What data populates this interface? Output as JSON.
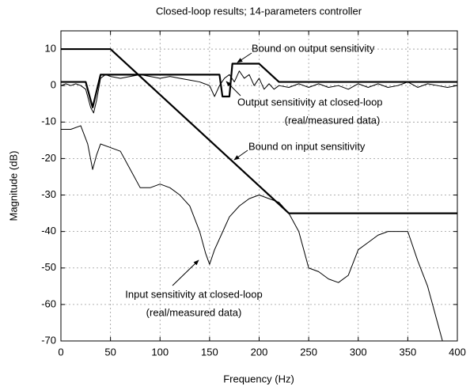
{
  "chart_data": {
    "type": "line",
    "title": "Closed-loop results; 14-parameters controller",
    "xlabel": "Frequency (Hz)",
    "ylabel": "Magnitude (dB)",
    "xlim": [
      0,
      400
    ],
    "ylim": [
      -70,
      15
    ],
    "xticks": [
      0,
      50,
      100,
      150,
      200,
      250,
      300,
      350,
      400
    ],
    "yticks": [
      10,
      0,
      -10,
      -20,
      -30,
      -40,
      -50,
      -60,
      -70
    ],
    "grid": true,
    "series": [
      {
        "color": "#000000",
        "width": 2.2,
        "x": [
          0,
          25,
          32,
          40,
          160,
          163,
          170,
          173,
          200,
          220,
          400
        ],
        "values": [
          1,
          1,
          -6,
          3,
          3,
          -3,
          -3,
          6,
          6,
          1,
          1
        ]
      },
      {
        "color": "#000000",
        "width": 2.2,
        "x": [
          0,
          50,
          230,
          400
        ],
        "values": [
          10,
          10,
          -35,
          -35
        ]
      },
      {
        "color": "#000000",
        "width": 1,
        "x": [
          0,
          5,
          10,
          15,
          20,
          25,
          30,
          33,
          36,
          40,
          45,
          50,
          60,
          70,
          80,
          90,
          100,
          110,
          120,
          130,
          140,
          150,
          155,
          160,
          165,
          170,
          175,
          180,
          185,
          190,
          195,
          200,
          205,
          210,
          215,
          220,
          230,
          240,
          250,
          260,
          270,
          280,
          290,
          300,
          310,
          320,
          330,
          340,
          350,
          360,
          370,
          380,
          390,
          400
        ],
        "values": [
          0,
          0.5,
          0,
          0.5,
          0,
          -1,
          -6,
          -7.5,
          -4,
          2,
          3,
          2.5,
          2,
          2.5,
          3,
          2.5,
          2,
          2.5,
          2,
          1.5,
          1,
          0,
          -3,
          0,
          2,
          3,
          1,
          4,
          2,
          3,
          0,
          2,
          -1,
          0.5,
          -1,
          0,
          -0.5,
          0.5,
          -0.5,
          0.5,
          -0.5,
          0,
          -1,
          0.5,
          -0.5,
          0.5,
          -0.5,
          0,
          1,
          -0.5,
          0.5,
          0,
          -0.5,
          0
        ]
      },
      {
        "color": "#000000",
        "width": 1,
        "x": [
          0,
          10,
          20,
          27,
          32,
          36,
          40,
          50,
          60,
          70,
          80,
          90,
          100,
          110,
          120,
          130,
          140,
          146,
          150,
          155,
          160,
          170,
          180,
          190,
          200,
          210,
          220,
          230,
          240,
          250,
          260,
          270,
          280,
          290,
          300,
          310,
          320,
          330,
          340,
          350,
          360,
          370,
          375,
          380,
          385
        ],
        "values": [
          -12,
          -12,
          -11,
          -16,
          -23,
          -19,
          -16,
          -17,
          -18,
          -23,
          -28,
          -28,
          -27,
          -28,
          -30,
          -33,
          -40,
          -46,
          -49,
          -45,
          -42,
          -36,
          -33,
          -31,
          -30,
          -31,
          -32,
          -35,
          -40,
          -50,
          -51,
          -53,
          -54,
          -52,
          -45,
          -43,
          -41,
          -40,
          -40,
          -40,
          -48,
          -55,
          -60,
          -65,
          -70
        ]
      }
    ],
    "annotations": [
      {
        "lines": [
          "Bound on output sensitivity"
        ]
      },
      {
        "lines": [
          "Output sensitivity at closed-loop",
          "(real/measured data)"
        ]
      },
      {
        "lines": [
          "Bound on input sensitivity"
        ]
      },
      {
        "lines": [
          "Input sensitivity at closed-loop",
          "(real/measured data)"
        ]
      }
    ]
  }
}
